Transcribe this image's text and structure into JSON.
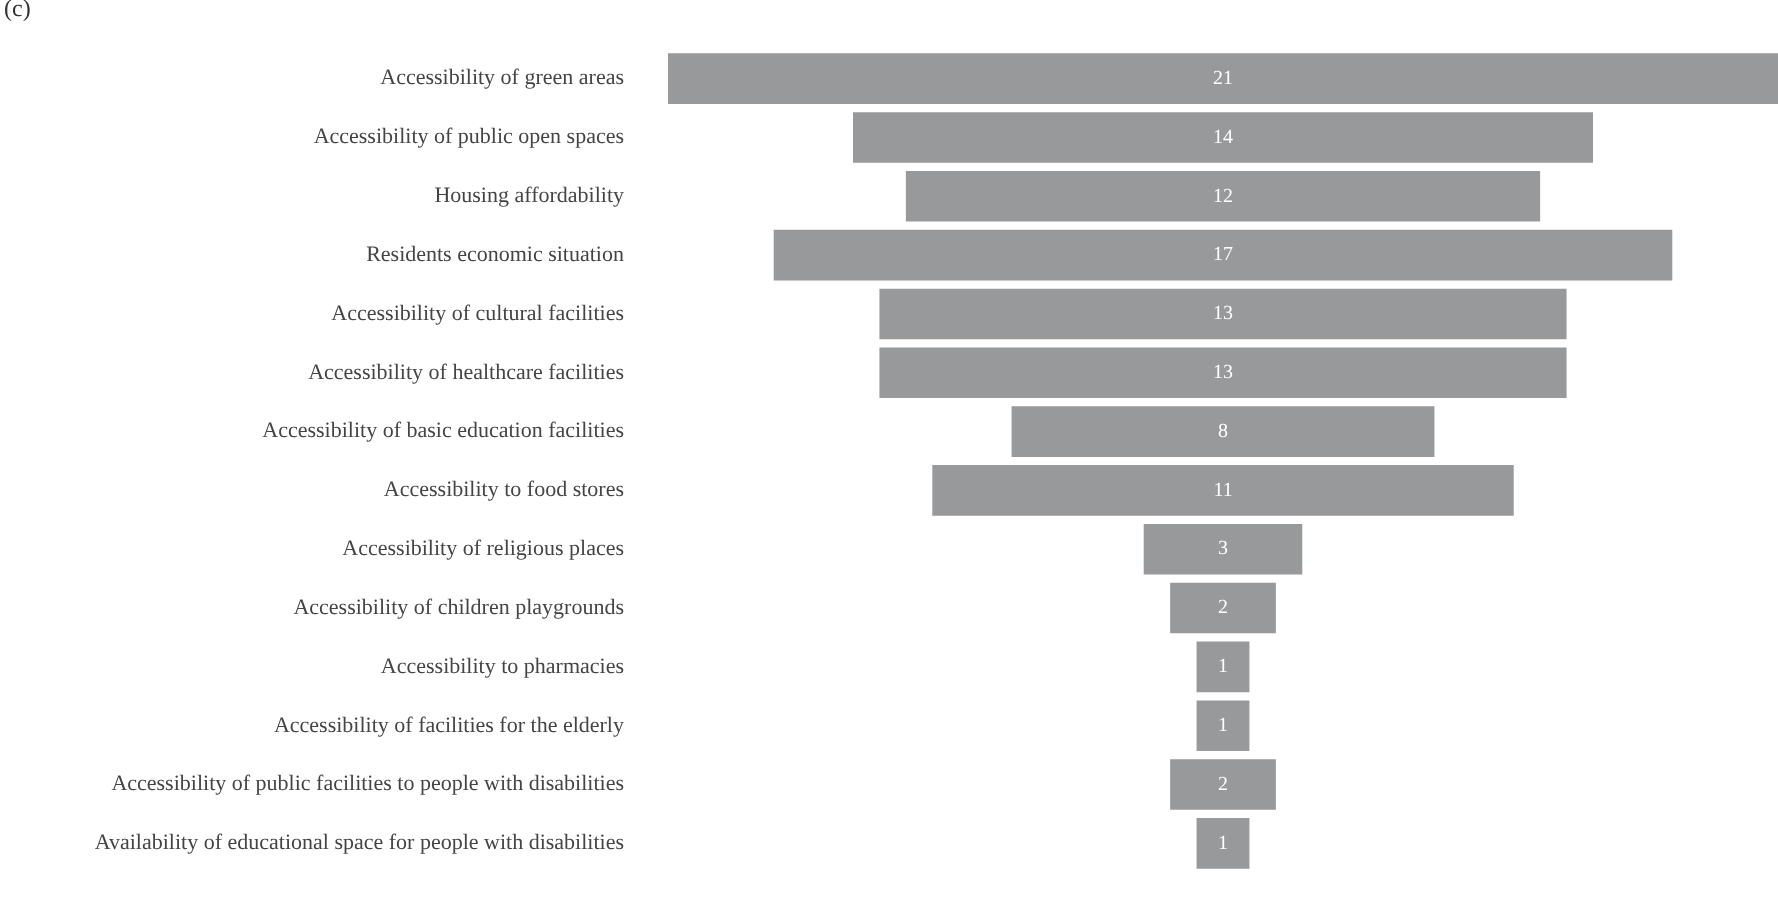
{
  "chart_data": {
    "type": "other",
    "title": "(c)",
    "color": "#98999b",
    "data_labels": true,
    "categories": [
      "Accessibility of green areas",
      "Accessibility of public open spaces",
      "Housing affordability",
      "Residents economic situation",
      "Accessibility of cultural facilities",
      "Accessibility of healthcare facilities",
      "Accessibility of basic education facilities",
      "Accessibility to food stores",
      "Accessibility of religious places",
      "Accessibility of children playgrounds",
      "Accessibility to pharmacies",
      "Accessibility of facilities for the elderly",
      "Accessibility of public facilities to people with disabilities",
      "Availability of educational space for people with disabilities"
    ],
    "values": [
      21,
      14,
      12,
      17,
      13,
      13,
      8,
      11,
      3,
      2,
      1,
      1,
      2,
      1
    ]
  }
}
